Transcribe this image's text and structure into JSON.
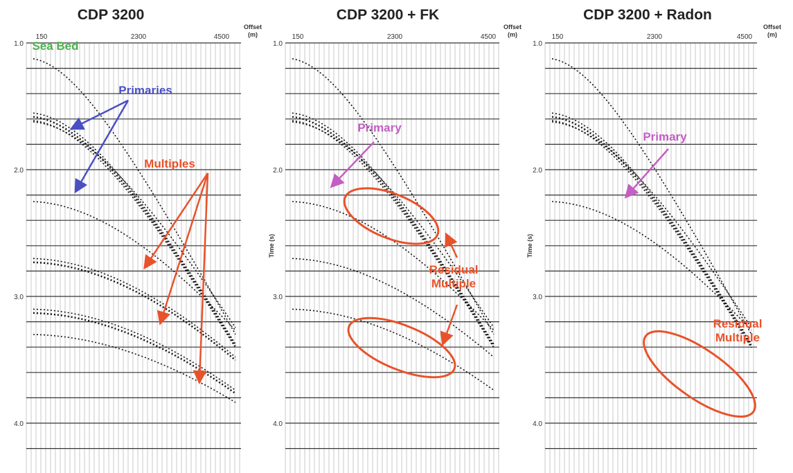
{
  "panels": [
    {
      "title": "CDP 3200",
      "offset_label": [
        "Offset",
        "(m)"
      ],
      "xticks": [
        150,
        2300,
        4500
      ],
      "yticks": [
        {
          "value": 1,
          "label": "1.0"
        },
        {
          "value": 2,
          "label": "2.0"
        },
        {
          "value": 3,
          "label": "3.0"
        },
        {
          "value": 4,
          "label": "4.0"
        }
      ],
      "annotations": [
        {
          "lines": [
            "Sea Bed"
          ],
          "color": "#4caf50"
        },
        {
          "lines": [
            "Primaries"
          ],
          "color": "#4a4fc4"
        },
        {
          "lines": [
            "Multiples"
          ],
          "color": "#e8522a"
        }
      ]
    },
    {
      "title": "CDP 3200 + FK",
      "offset_label": [
        "Offset",
        "(m)"
      ],
      "time_label": "Time (s)",
      "xticks": [
        150,
        2300,
        4500
      ],
      "yticks": [
        {
          "value": 1,
          "label": "1.0"
        },
        {
          "value": 2,
          "label": "2.0"
        },
        {
          "value": 3,
          "label": "3.0"
        },
        {
          "value": 4,
          "label": "4.0"
        }
      ],
      "annotations": [
        {
          "lines": [
            "Primary"
          ],
          "color": "#c45ec4"
        },
        {
          "lines": [
            "Residual",
            "Multiple"
          ],
          "color": "#e8522a"
        }
      ]
    },
    {
      "title": "CDP 3200 + Radon",
      "offset_label": [
        "Offset",
        "(m)"
      ],
      "time_label": "Time (s)",
      "xticks": [
        150,
        2300,
        4500
      ],
      "yticks": [
        {
          "value": 1,
          "label": "1.0"
        },
        {
          "value": 2,
          "label": "2.0"
        },
        {
          "value": 3,
          "label": "3.0"
        },
        {
          "value": 4,
          "label": "4.0"
        }
      ],
      "annotations": [
        {
          "lines": [
            "Primary"
          ],
          "color": "#c45ec4"
        },
        {
          "lines": [
            "Residual",
            "Multiple"
          ],
          "color": "#e8522a"
        }
      ]
    }
  ]
}
